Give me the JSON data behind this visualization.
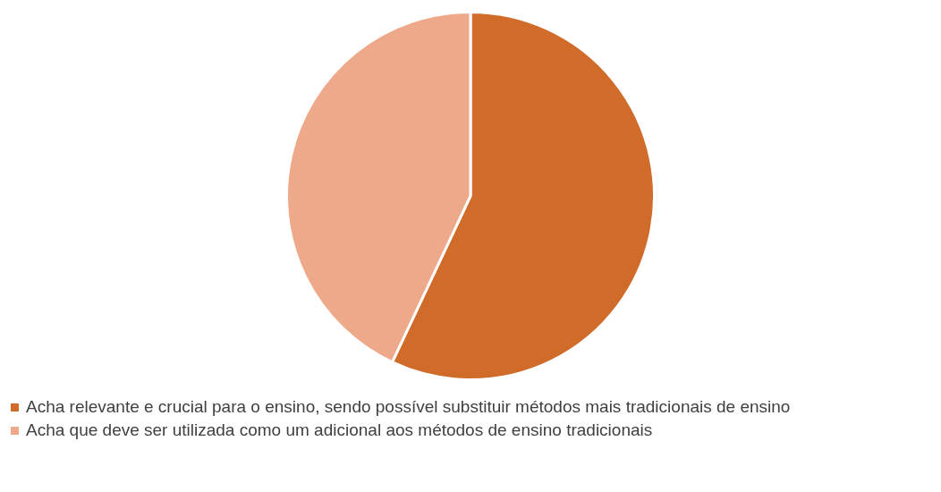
{
  "chart_data": {
    "type": "pie",
    "categories": [
      "Acha relevante e crucial para o ensino, sendo possível substituir métodos mais tradicionais de ensino",
      "Acha que deve ser utilizada como um adicional aos métodos de ensino tradicionais"
    ],
    "values": [
      57,
      43
    ],
    "colors": [
      "#d06b2a",
      "#eea98a"
    ],
    "legend": "bottom"
  }
}
